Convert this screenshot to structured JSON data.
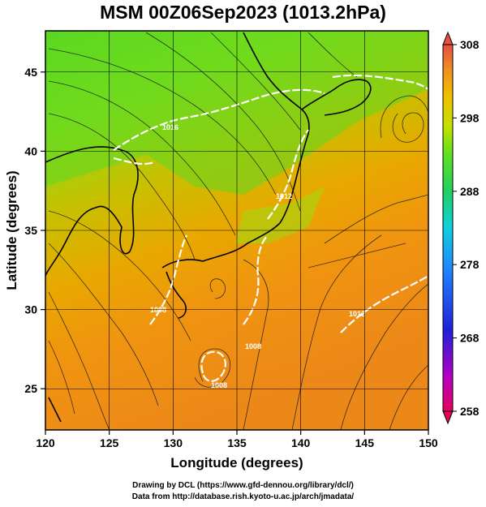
{
  "title": "MSM 00Z06Sep2023 (1013.2hPa)",
  "map": {
    "x_axis": {
      "title": "Longitude (degrees)",
      "range": [
        120,
        150
      ],
      "ticks": [
        "120",
        "125",
        "130",
        "135",
        "140",
        "145",
        "150"
      ]
    },
    "y_axis": {
      "title": "Latitude  (degrees)",
      "range": [
        22.4,
        47.6
      ],
      "ticks": [
        "25",
        "30",
        "35",
        "40",
        "45"
      ]
    },
    "grid": true,
    "field": "temperature shading with streamlines and white pressure contours",
    "contour_labels": [
      "1016",
      "1012",
      "1008",
      "1008",
      "1012",
      "1008"
    ]
  },
  "colorbar": {
    "unit_range": [
      258,
      308
    ],
    "ticks": [
      "308",
      "298",
      "288",
      "278",
      "268",
      "258"
    ],
    "colors": [
      "#e8005a",
      "#b000c8",
      "#2020d8",
      "#2080ff",
      "#10d0e0",
      "#20d060",
      "#60e020",
      "#c8e000",
      "#f0c000",
      "#f09020",
      "#e85040"
    ]
  },
  "credits": {
    "line1": "Drawing by DCL (https://www.gfd-dennou.org/library/dcl/)",
    "line2": "Data from http://database.rish.kyoto-u.ac.jp/arch/jmadata/"
  }
}
